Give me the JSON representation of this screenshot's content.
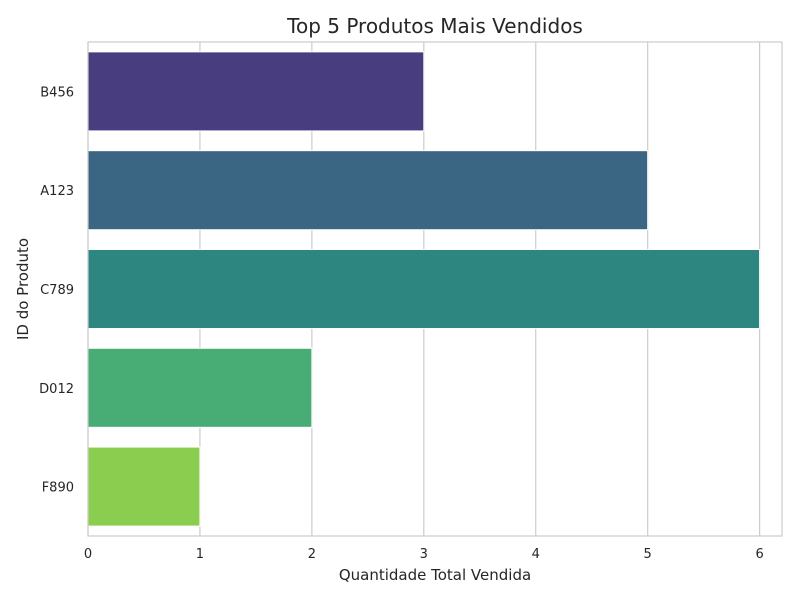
{
  "chart_data": {
    "type": "bar",
    "orientation": "horizontal",
    "title": "Top 5 Produtos Mais Vendidos",
    "xlabel": "Quantidade Total Vendida",
    "ylabel": "ID do Produto",
    "categories": [
      "B456",
      "A123",
      "C789",
      "D012",
      "F890"
    ],
    "values": [
      3,
      5,
      6,
      2,
      1
    ],
    "colors": [
      "#483d7f",
      "#3b6683",
      "#2d8680",
      "#48ad74",
      "#8bce4f"
    ],
    "xlim": [
      0,
      6.2
    ],
    "xticks": [
      0,
      1,
      2,
      3,
      4,
      5,
      6
    ],
    "grid": "vertical"
  }
}
